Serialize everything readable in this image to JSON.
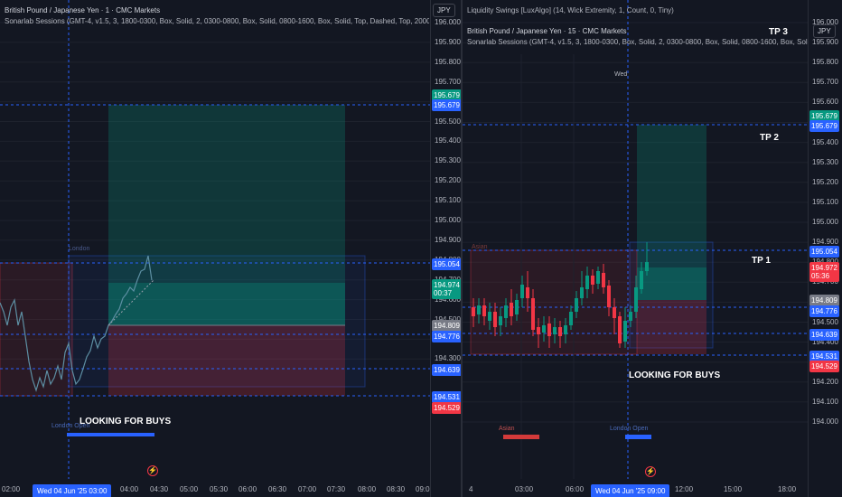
{
  "left": {
    "title": "British Pound / Japanese Yen · 1 · CMC Markets",
    "indicator": "Sonarlab Sessions (GMT-4, v1.5, 3, 1800-0300, Box, Solid, 2, 0300-0800, Box, Solid, 0800-1600, Box, Solid, Top, Dashed, Top, 2000-2200, 0300-0",
    "currency": "JPY",
    "y_labels": [
      "196.000",
      "195.900",
      "195.800",
      "195.700",
      "195.600",
      "195.500",
      "195.400",
      "195.300",
      "195.200",
      "195.100",
      "195.000",
      "194.900",
      "194.800",
      "194.700",
      "194.600",
      "194.500",
      "194.400",
      "194.300"
    ],
    "price_tags": [
      {
        "text": "195.679",
        "color": "#089981"
      },
      {
        "text": "195.679",
        "color": "#2962ff"
      },
      {
        "text": "195.054",
        "color": "#2962ff"
      },
      {
        "text": "194.974",
        "sub": "00:37",
        "color": "#089981"
      },
      {
        "text": "194.809",
        "color": "#787b86"
      },
      {
        "text": "194.776",
        "color": "#2962ff"
      },
      {
        "text": "194.639",
        "color": "#2962ff"
      },
      {
        "text": "194.531",
        "color": "#2962ff"
      },
      {
        "text": "194.529",
        "color": "#f23645"
      }
    ],
    "time_labels": [
      "02:00",
      "04:00",
      "04:30",
      "05:00",
      "05:30",
      "06:00",
      "06:30",
      "07:00",
      "07:30",
      "08:00",
      "08:30",
      "09:0"
    ],
    "time_highlight": "Wed 04 Jun '25   03:00",
    "session_london": "London",
    "session_london_open": "London Open",
    "annotation": "LOOKING FOR BUYS"
  },
  "right": {
    "title": "British Pound / Japanese Yen · 15 · CMC Markets",
    "top_line": "Liquidity Swings [LuxAlgo] (14, Wick Extremity, 1, Count, 0, Tiny)",
    "indicator": "Sonarlab Sessions (GMT-4, v1.5, 3, 1800-0300, Box, Solid, 2, 0300-0800, Box, Solid, 0800-1600, Box, Solid, Top, Dashed",
    "currency": "JPY",
    "y_labels": [
      "196.000",
      "195.900",
      "195.800",
      "195.700",
      "195.600",
      "195.500",
      "195.400",
      "195.300",
      "195.200",
      "195.100",
      "195.000",
      "194.900",
      "194.800",
      "194.700",
      "194.600",
      "194.500",
      "194.400",
      "194.300",
      "194.200",
      "194.100",
      "194.000"
    ],
    "price_tags": [
      {
        "text": "195.679",
        "color": "#089981"
      },
      {
        "text": "195.679",
        "color": "#2962ff"
      },
      {
        "text": "195.054",
        "color": "#2962ff"
      },
      {
        "text": "194.972",
        "sub": "05:36",
        "color": "#f23645"
      },
      {
        "text": "194.809",
        "color": "#787b86"
      },
      {
        "text": "194.776",
        "color": "#2962ff"
      },
      {
        "text": "194.639",
        "color": "#2962ff"
      },
      {
        "text": "194.531",
        "color": "#2962ff"
      },
      {
        "text": "194.529",
        "color": "#f23645"
      }
    ],
    "time_labels": [
      "4",
      "03:00",
      "06:00",
      "12:00",
      "15:00",
      "18:00"
    ],
    "time_highlight": "Wed 04 Jun '25   09:00",
    "wed_marker": "Wed",
    "session_asian": "Asian",
    "session_asian_bottom": "Asian",
    "session_london_open": "London Open",
    "tp3": "TP 3",
    "tp2": "TP 2",
    "tp1": "TP 1",
    "annotation": "LOOKING FOR BUYS"
  }
}
